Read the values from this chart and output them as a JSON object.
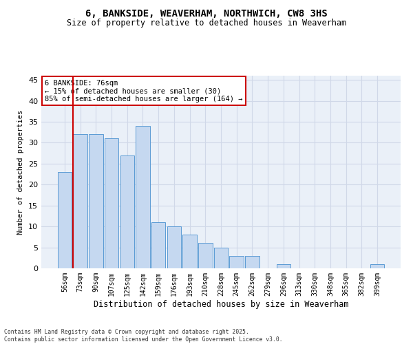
{
  "title_line1": "6, BANKSIDE, WEAVERHAM, NORTHWICH, CW8 3HS",
  "title_line2": "Size of property relative to detached houses in Weaverham",
  "xlabel": "Distribution of detached houses by size in Weaverham",
  "ylabel": "Number of detached properties",
  "footnote": "Contains HM Land Registry data © Crown copyright and database right 2025.\nContains public sector information licensed under the Open Government Licence v3.0.",
  "bar_color": "#c5d8f0",
  "bar_edge_color": "#5b9bd5",
  "annotation_box_color": "#ffffff",
  "annotation_border_color": "#cc0000",
  "vline_color": "#cc0000",
  "categories": [
    "56sqm",
    "73sqm",
    "90sqm",
    "107sqm",
    "125sqm",
    "142sqm",
    "159sqm",
    "176sqm",
    "193sqm",
    "210sqm",
    "228sqm",
    "245sqm",
    "262sqm",
    "279sqm",
    "296sqm",
    "313sqm",
    "330sqm",
    "348sqm",
    "365sqm",
    "382sqm",
    "399sqm"
  ],
  "values": [
    23,
    32,
    32,
    31,
    27,
    34,
    11,
    10,
    8,
    6,
    5,
    3,
    3,
    0,
    1,
    0,
    0,
    0,
    0,
    0,
    1
  ],
  "property_bin_index": 1,
  "annotation_title": "6 BANKSIDE: 76sqm",
  "annotation_line2": "← 15% of detached houses are smaller (30)",
  "annotation_line3": "85% of semi-detached houses are larger (164) →",
  "ylim": [
    0,
    46
  ],
  "yticks": [
    0,
    5,
    10,
    15,
    20,
    25,
    30,
    35,
    40,
    45
  ],
  "grid_color": "#d0d8e8",
  "bg_color": "#eaf0f8"
}
